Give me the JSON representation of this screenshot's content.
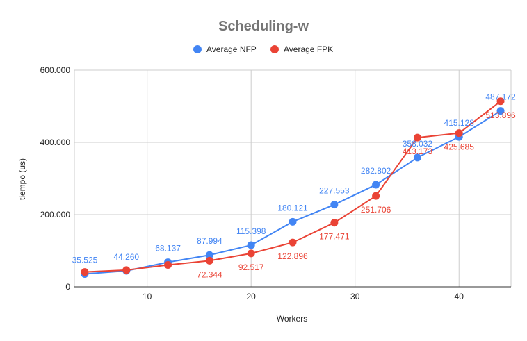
{
  "chart_data": {
    "type": "line",
    "title": "Scheduling-w",
    "xlabel": "Workers",
    "ylabel": "tiempo (us)",
    "x": [
      4,
      8,
      12,
      16,
      20,
      24,
      28,
      32,
      36,
      40,
      44
    ],
    "xlim": [
      3,
      45
    ],
    "ylim": [
      0,
      600000
    ],
    "x_ticks": [
      10,
      20,
      30,
      40
    ],
    "x_tick_labels": [
      "10",
      "20",
      "30",
      "40"
    ],
    "y_ticks": [
      0,
      200000,
      400000,
      600000
    ],
    "y_tick_labels": [
      "0",
      "200.000",
      "400.000",
      "600.000"
    ],
    "grid": true,
    "legend_position": "top",
    "series": [
      {
        "name": "Average NFP",
        "color": "#4285f4",
        "values": [
          35525,
          44260,
          68137,
          87994,
          115398,
          180121,
          227553,
          282802,
          358032,
          415128,
          487172
        ],
        "labels": [
          "35.525",
          "44.260",
          "68.137",
          "87.994",
          "115.398",
          "180.121",
          "227.553",
          "282.802",
          "358.032",
          "415.128",
          "487.172"
        ],
        "label_position": "above",
        "label_shown": [
          true,
          true,
          true,
          true,
          true,
          true,
          true,
          true,
          true,
          true,
          true
        ]
      },
      {
        "name": "Average FPK",
        "color": "#ea4335",
        "values": [
          41000,
          46500,
          60500,
          72344,
          92517,
          122896,
          177471,
          251706,
          413173,
          425685,
          513896
        ],
        "labels": [
          "",
          "",
          "",
          "72.344",
          "92.517",
          "122.896",
          "177.471",
          "251.706",
          "413.173",
          "425.685",
          "513.896"
        ],
        "label_position": "below",
        "label_shown": [
          false,
          false,
          false,
          true,
          true,
          true,
          true,
          true,
          true,
          true,
          true
        ]
      }
    ]
  }
}
